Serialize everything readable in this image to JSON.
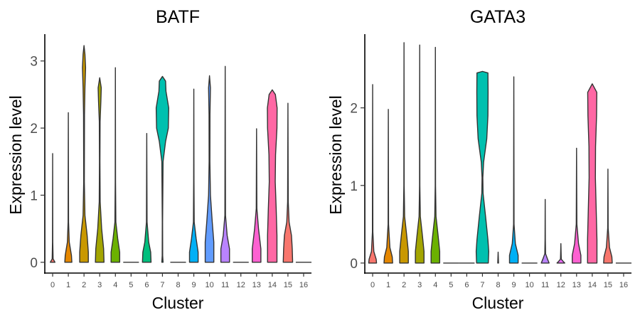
{
  "chart_data": [
    {
      "type": "violin",
      "title": "BATF",
      "xlabel": "Cluster",
      "ylabel": "Expression level",
      "categories": [
        "0",
        "1",
        "2",
        "3",
        "4",
        "5",
        "6",
        "7",
        "8",
        "9",
        "10",
        "11",
        "12",
        "13",
        "14",
        "15",
        "16"
      ],
      "ylim": [
        -0.15,
        3.4
      ],
      "yticks": [
        0,
        1,
        2,
        3
      ],
      "grid": false,
      "colors": [
        "#F8766D",
        "#E58700",
        "#C99800",
        "#A3A500",
        "#6BB100",
        "#00BA38",
        "#00BF7D",
        "#00C0AF",
        "#00BCD8",
        "#00B0F6",
        "#619CFF",
        "#B983FF",
        "#E76BF3",
        "#FD61D1",
        "#FF67A4",
        "#F8766D",
        "#E58700"
      ],
      "violins": [
        {
          "cluster": "0",
          "max": 1.62,
          "profile": [
            [
              0,
              0.3
            ],
            [
              0.05,
              0.06
            ],
            [
              0.3,
              0.02
            ],
            [
              1.62,
              0
            ]
          ]
        },
        {
          "cluster": "1",
          "max": 2.23,
          "profile": [
            [
              0,
              0.45
            ],
            [
              0.1,
              0.4
            ],
            [
              0.3,
              0.12
            ],
            [
              0.6,
              0.03
            ],
            [
              2.23,
              0
            ]
          ]
        },
        {
          "cluster": "2",
          "max": 3.23,
          "profile": [
            [
              0,
              0.55
            ],
            [
              0.15,
              0.55
            ],
            [
              0.4,
              0.4
            ],
            [
              0.7,
              0.12
            ],
            [
              1.2,
              0.04
            ],
            [
              2.2,
              0.06
            ],
            [
              2.6,
              0.12
            ],
            [
              2.9,
              0.2
            ],
            [
              3.1,
              0.12
            ],
            [
              3.23,
              0
            ]
          ]
        },
        {
          "cluster": "3",
          "max": 2.75,
          "profile": [
            [
              0,
              0.55
            ],
            [
              0.2,
              0.5
            ],
            [
              0.5,
              0.25
            ],
            [
              0.9,
              0.06
            ],
            [
              1.5,
              0.03
            ],
            [
              2.1,
              0.05
            ],
            [
              2.4,
              0.15
            ],
            [
              2.6,
              0.2
            ],
            [
              2.75,
              0
            ]
          ]
        },
        {
          "cluster": "4",
          "max": 2.9,
          "profile": [
            [
              0,
              0.55
            ],
            [
              0.15,
              0.55
            ],
            [
              0.35,
              0.3
            ],
            [
              0.6,
              0.06
            ],
            [
              1.2,
              0.02
            ],
            [
              2.9,
              0
            ]
          ]
        },
        {
          "cluster": "5",
          "max": 0,
          "profile": []
        },
        {
          "cluster": "6",
          "max": 1.92,
          "profile": [
            [
              0,
              0.55
            ],
            [
              0.15,
              0.5
            ],
            [
              0.3,
              0.25
            ],
            [
              0.6,
              0.04
            ],
            [
              1.92,
              0
            ]
          ]
        },
        {
          "cluster": "7",
          "max": 2.77,
          "profile": [
            [
              0,
              0.08
            ],
            [
              0.1,
              0.03
            ],
            [
              0.6,
              0.02
            ],
            [
              1.5,
              0.08
            ],
            [
              1.8,
              0.4
            ],
            [
              2.0,
              0.75
            ],
            [
              2.3,
              0.8
            ],
            [
              2.55,
              0.45
            ],
            [
              2.7,
              0.4
            ],
            [
              2.77,
              0
            ]
          ]
        },
        {
          "cluster": "8",
          "max": 0,
          "profile": []
        },
        {
          "cluster": "9",
          "max": 2.58,
          "profile": [
            [
              0,
              0.55
            ],
            [
              0.15,
              0.55
            ],
            [
              0.35,
              0.3
            ],
            [
              0.6,
              0.05
            ],
            [
              1.2,
              0.02
            ],
            [
              2.58,
              0
            ]
          ]
        },
        {
          "cluster": "10",
          "max": 2.78,
          "profile": [
            [
              0,
              0.55
            ],
            [
              0.3,
              0.55
            ],
            [
              0.6,
              0.35
            ],
            [
              1.0,
              0.12
            ],
            [
              1.5,
              0.05
            ],
            [
              2.2,
              0.06
            ],
            [
              2.6,
              0.12
            ],
            [
              2.78,
              0
            ]
          ]
        },
        {
          "cluster": "11",
          "max": 2.92,
          "profile": [
            [
              0,
              0.55
            ],
            [
              0.2,
              0.55
            ],
            [
              0.4,
              0.25
            ],
            [
              0.7,
              0.04
            ],
            [
              2.92,
              0
            ]
          ]
        },
        {
          "cluster": "12",
          "max": 0,
          "profile": []
        },
        {
          "cluster": "13",
          "max": 1.99,
          "profile": [
            [
              0,
              0.55
            ],
            [
              0.2,
              0.55
            ],
            [
              0.5,
              0.25
            ],
            [
              0.8,
              0.04
            ],
            [
              1.99,
              0
            ]
          ]
        },
        {
          "cluster": "14",
          "max": 2.57,
          "profile": [
            [
              0,
              0.6
            ],
            [
              0.4,
              0.6
            ],
            [
              0.8,
              0.5
            ],
            [
              1.2,
              0.38
            ],
            [
              1.6,
              0.42
            ],
            [
              2.0,
              0.6
            ],
            [
              2.3,
              0.62
            ],
            [
              2.5,
              0.4
            ],
            [
              2.57,
              0
            ]
          ]
        },
        {
          "cluster": "15",
          "max": 2.37,
          "profile": [
            [
              0,
              0.6
            ],
            [
              0.2,
              0.55
            ],
            [
              0.4,
              0.45
            ],
            [
              0.6,
              0.15
            ],
            [
              0.9,
              0.04
            ],
            [
              2.37,
              0
            ]
          ]
        },
        {
          "cluster": "16",
          "max": 0,
          "profile": []
        }
      ]
    },
    {
      "type": "violin",
      "title": "GATA3",
      "xlabel": "Cluster",
      "ylabel": "Expression level",
      "categories": [
        "0",
        "1",
        "2",
        "3",
        "4",
        "5",
        "6",
        "7",
        "8",
        "9",
        "10",
        "11",
        "12",
        "13",
        "14",
        "15",
        "16"
      ],
      "ylim": [
        -0.12,
        2.95
      ],
      "yticks": [
        0,
        1,
        2
      ],
      "grid": false,
      "colors": [
        "#F8766D",
        "#E58700",
        "#C99800",
        "#A3A500",
        "#6BB100",
        "#00BA38",
        "#00BF7D",
        "#00C0AF",
        "#00BCD8",
        "#00B0F6",
        "#619CFF",
        "#B983FF",
        "#E76BF3",
        "#FD61D1",
        "#FF67A4",
        "#F8766D",
        "#E58700"
      ],
      "violins": [
        {
          "cluster": "0",
          "max": 2.3,
          "profile": [
            [
              0,
              0.5
            ],
            [
              0.05,
              0.45
            ],
            [
              0.15,
              0.15
            ],
            [
              0.4,
              0.03
            ],
            [
              2.3,
              0
            ]
          ]
        },
        {
          "cluster": "1",
          "max": 1.98,
          "profile": [
            [
              0,
              0.55
            ],
            [
              0.08,
              0.5
            ],
            [
              0.2,
              0.2
            ],
            [
              0.5,
              0.03
            ],
            [
              1.98,
              0
            ]
          ]
        },
        {
          "cluster": "2",
          "max": 2.84,
          "profile": [
            [
              0,
              0.55
            ],
            [
              0.15,
              0.55
            ],
            [
              0.35,
              0.35
            ],
            [
              0.6,
              0.08
            ],
            [
              1.0,
              0.02
            ],
            [
              2.84,
              0
            ]
          ]
        },
        {
          "cluster": "3",
          "max": 2.81,
          "profile": [
            [
              0,
              0.55
            ],
            [
              0.15,
              0.55
            ],
            [
              0.35,
              0.35
            ],
            [
              0.6,
              0.08
            ],
            [
              1.0,
              0.02
            ],
            [
              2.81,
              0
            ]
          ]
        },
        {
          "cluster": "4",
          "max": 2.78,
          "profile": [
            [
              0,
              0.55
            ],
            [
              0.15,
              0.55
            ],
            [
              0.35,
              0.35
            ],
            [
              0.6,
              0.08
            ],
            [
              1.0,
              0.02
            ],
            [
              2.78,
              0
            ]
          ]
        },
        {
          "cluster": "5",
          "max": 0,
          "profile": []
        },
        {
          "cluster": "6",
          "max": 0,
          "profile": []
        },
        {
          "cluster": "7",
          "max": 2.47,
          "profile": [
            [
              0,
              0.75
            ],
            [
              0.15,
              0.8
            ],
            [
              0.3,
              0.7
            ],
            [
              0.6,
              0.4
            ],
            [
              0.9,
              0.08
            ],
            [
              1.1,
              0.05
            ],
            [
              1.3,
              0.15
            ],
            [
              1.6,
              0.55
            ],
            [
              1.9,
              0.7
            ],
            [
              2.2,
              0.72
            ],
            [
              2.45,
              0.7
            ],
            [
              2.47,
              0
            ]
          ]
        },
        {
          "cluster": "8",
          "max": 0.14,
          "profile": [
            [
              0,
              0.05
            ],
            [
              0.14,
              0
            ]
          ]
        },
        {
          "cluster": "9",
          "max": 2.4,
          "profile": [
            [
              0,
              0.55
            ],
            [
              0.1,
              0.55
            ],
            [
              0.25,
              0.2
            ],
            [
              0.5,
              0.03
            ],
            [
              2.4,
              0
            ]
          ]
        },
        {
          "cluster": "10",
          "max": 0,
          "profile": []
        },
        {
          "cluster": "11",
          "max": 0.82,
          "profile": [
            [
              0,
              0.5
            ],
            [
              0.05,
              0.3
            ],
            [
              0.12,
              0.05
            ],
            [
              0.3,
              0.02
            ],
            [
              0.82,
              0
            ]
          ]
        },
        {
          "cluster": "12",
          "max": 0.25,
          "profile": [
            [
              0,
              0.5
            ],
            [
              0.02,
              0.3
            ],
            [
              0.05,
              0.05
            ],
            [
              0.25,
              0
            ]
          ]
        },
        {
          "cluster": "13",
          "max": 1.48,
          "profile": [
            [
              0,
              0.55
            ],
            [
              0.1,
              0.55
            ],
            [
              0.25,
              0.25
            ],
            [
              0.5,
              0.04
            ],
            [
              1.48,
              0
            ]
          ]
        },
        {
          "cluster": "14",
          "max": 2.31,
          "profile": [
            [
              0,
              0.6
            ],
            [
              0.3,
              0.6
            ],
            [
              0.7,
              0.5
            ],
            [
              1.1,
              0.4
            ],
            [
              1.5,
              0.42
            ],
            [
              1.9,
              0.55
            ],
            [
              2.2,
              0.58
            ],
            [
              2.31,
              0
            ]
          ]
        },
        {
          "cluster": "15",
          "max": 1.21,
          "profile": [
            [
              0,
              0.55
            ],
            [
              0.08,
              0.5
            ],
            [
              0.2,
              0.2
            ],
            [
              0.45,
              0.03
            ],
            [
              1.21,
              0
            ]
          ]
        },
        {
          "cluster": "16",
          "max": 0,
          "profile": []
        }
      ]
    }
  ]
}
